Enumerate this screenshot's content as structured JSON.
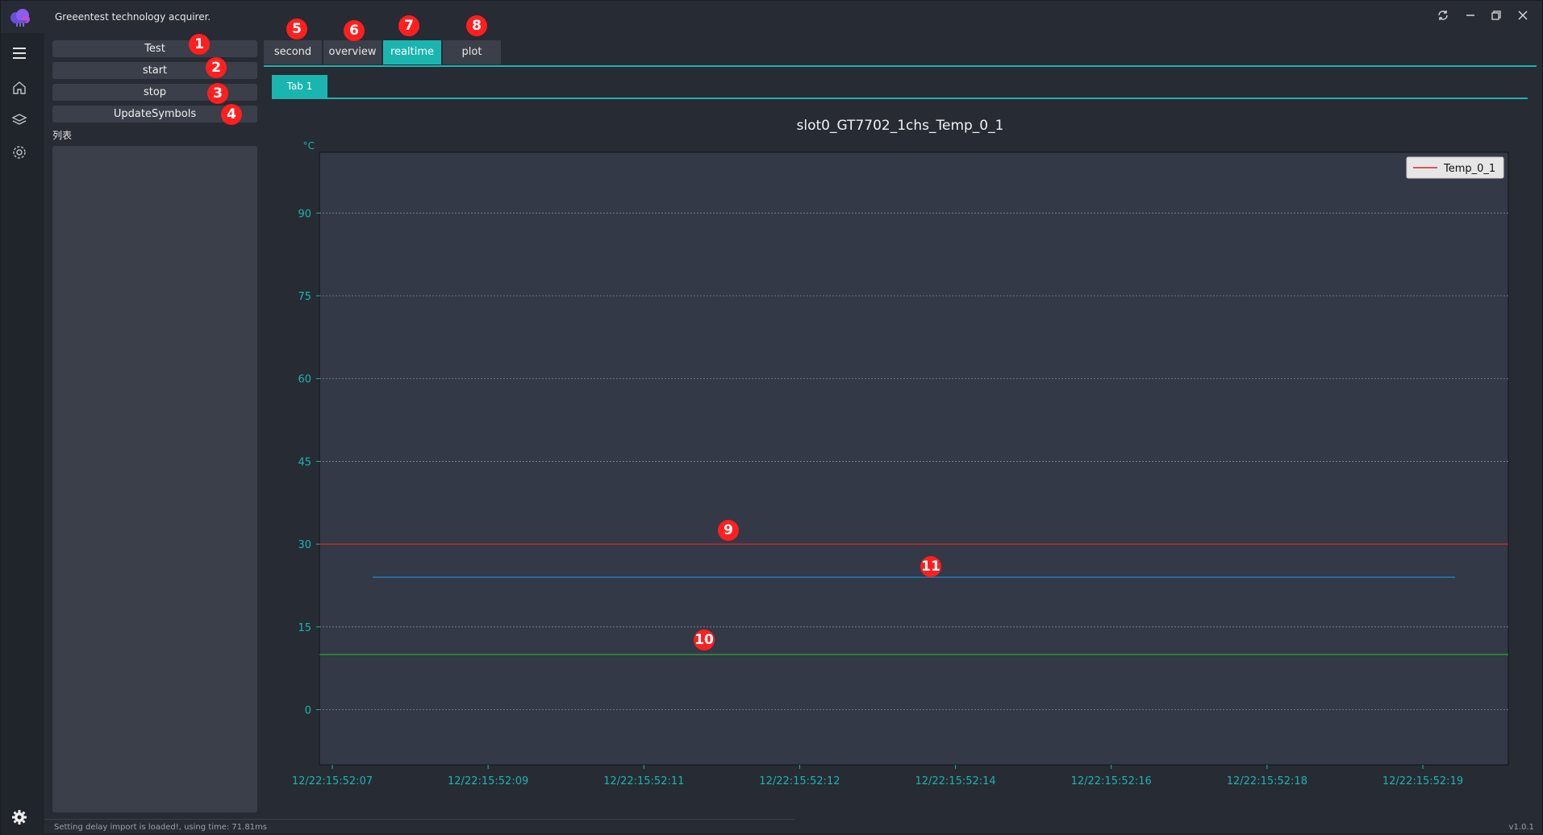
{
  "app": {
    "title": "Greeentest technology acquirer.",
    "version": "v1.0.1"
  },
  "window_controls": [
    "refresh-icon",
    "minimize-icon",
    "restore-icon",
    "close-icon"
  ],
  "left_panel": {
    "buttons": [
      {
        "label": "Test"
      },
      {
        "label": "start"
      },
      {
        "label": "stop"
      },
      {
        "label": "UpdateSymbols"
      }
    ],
    "list_label": "列表"
  },
  "tabs": [
    {
      "label": "second",
      "active": false
    },
    {
      "label": "overview",
      "active": false
    },
    {
      "label": "realtime",
      "active": true
    },
    {
      "label": "plot",
      "active": false
    }
  ],
  "subtab": {
    "label": "Tab 1"
  },
  "status": {
    "text": "Setting delay import is loaded!, using time: 71.81ms"
  },
  "markers": [
    "1",
    "2",
    "3",
    "4",
    "5",
    "6",
    "7",
    "8",
    "9",
    "10",
    "11"
  ],
  "colors": {
    "accent": "#1bb5b0",
    "background": "#272b34",
    "plot_bg": "#333946"
  },
  "chart_data": {
    "type": "line",
    "title": "slot0_GT7702_1chs_Temp_0_1",
    "ylabel": "°C",
    "xlabel": "",
    "ylim": [
      -10,
      101
    ],
    "yticks": [
      0,
      15,
      30,
      45,
      60,
      75,
      90
    ],
    "x_ticks": [
      "12/22:15:52:07",
      "12/22:15:52:09",
      "12/22:15:52:11",
      "12/22:15:52:12",
      "12/22:15:52:14",
      "12/22:15:52:16",
      "12/22:15:52:18",
      "12/22:15:52:19"
    ],
    "grid": true,
    "legend_position": "top-right",
    "series": [
      {
        "name": "Temp_0_1",
        "color": "#1f77b4",
        "x_start": "12/22:15:52:07",
        "x_end": "12/22:15:52:19",
        "values": [
          24,
          24
        ]
      }
    ],
    "reference_lines": [
      {
        "value": 30,
        "color": "#d62728"
      },
      {
        "value": 10,
        "color": "#2ca02c"
      }
    ],
    "legend_entries": [
      {
        "label": "Temp_0_1",
        "color": "#d62728"
      }
    ]
  }
}
